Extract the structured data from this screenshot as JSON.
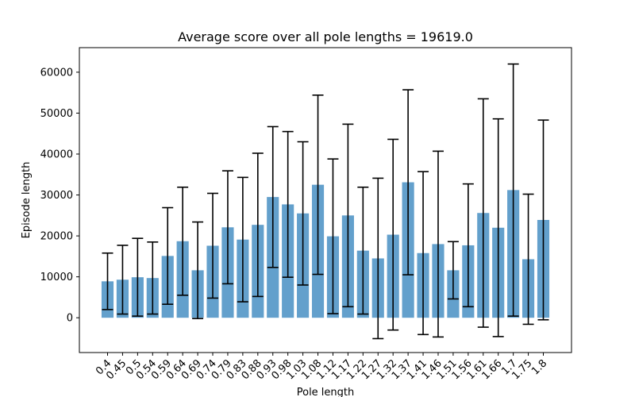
{
  "chart_data": {
    "type": "bar",
    "title": "Average score over all pole lengths = 19619.0",
    "xlabel": "Pole length",
    "ylabel": "Episode length",
    "categories": [
      "0.4",
      "0.45",
      "0.5",
      "0.54",
      "0.59",
      "0.64",
      "0.69",
      "0.74",
      "0.79",
      "0.83",
      "0.88",
      "0.93",
      "0.98",
      "1.03",
      "1.08",
      "1.12",
      "1.17",
      "1.22",
      "1.27",
      "1.32",
      "1.37",
      "1.41",
      "1.46",
      "1.51",
      "1.56",
      "1.61",
      "1.66",
      "1.7",
      "1.75",
      "1.8"
    ],
    "values": [
      8900,
      9300,
      9900,
      9700,
      15100,
      18700,
      11600,
      17600,
      22100,
      19100,
      22700,
      29500,
      27700,
      25500,
      32500,
      19900,
      25000,
      16400,
      14500,
      20300,
      33100,
      15800,
      18000,
      11600,
      17700,
      25600,
      22000,
      31200,
      14300,
      23900
    ],
    "errors": [
      6900,
      8400,
      9500,
      8800,
      11800,
      13200,
      11800,
      12800,
      13800,
      15200,
      17500,
      17200,
      17800,
      17500,
      21900,
      18900,
      22300,
      15500,
      19600,
      23300,
      22600,
      19900,
      22700,
      7000,
      15000,
      27900,
      26600,
      30800,
      15900,
      24400
    ],
    "ylim": [
      -8500,
      66000
    ],
    "yticks": [
      0,
      10000,
      20000,
      30000,
      40000,
      50000,
      60000
    ],
    "bar_color": "#5b9bc9",
    "error_color": "#000000",
    "grid": false
  }
}
